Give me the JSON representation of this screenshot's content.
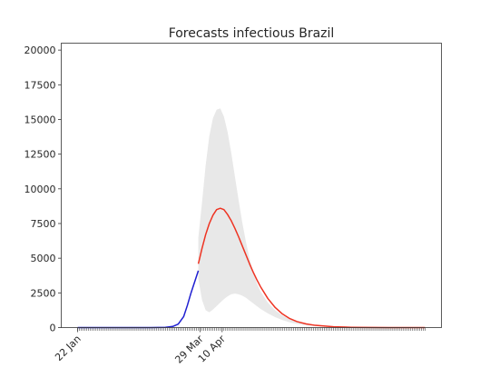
{
  "chart_data": {
    "type": "line",
    "title": "Forecasts infectious Brazil",
    "xlabel": "",
    "ylabel": "",
    "x_start": "22 Jan",
    "ylim": [
      0,
      20500
    ],
    "yticks": [
      0,
      2500,
      5000,
      7500,
      10000,
      12500,
      15000,
      17500,
      20000
    ],
    "ytick_labels": [
      "0",
      "2500",
      "5000",
      "7500",
      "10000",
      "12500",
      "15000",
      "17500",
      "20000"
    ],
    "xticks": [
      {
        "label": "22 Jan",
        "day": 0
      },
      {
        "label": "29 Mar",
        "day": 67
      },
      {
        "label": "10 Apr",
        "day": 79
      }
    ],
    "minor_tick_days_range": [
      0,
      190
    ],
    "grid": false,
    "legend": "none",
    "series": [
      {
        "role": "observed",
        "color": "#1f1fd1",
        "x_days": [
          0,
          10,
          20,
          30,
          40,
          48,
          52,
          55,
          58,
          60,
          62,
          64,
          66
        ],
        "y": [
          0,
          0,
          0,
          0,
          0,
          20,
          80,
          250,
          800,
          1600,
          2500,
          3300,
          4100
        ]
      },
      {
        "role": "forecast",
        "color": "#ee3322",
        "x_days": [
          66,
          68,
          70,
          72,
          74,
          76,
          78,
          80,
          82,
          84,
          86,
          88,
          90,
          92,
          94,
          96,
          98,
          100,
          104,
          108,
          112,
          116,
          120,
          125,
          130,
          140,
          150,
          160,
          170,
          180,
          190
        ],
        "y": [
          4600,
          5700,
          6700,
          7500,
          8100,
          8500,
          8600,
          8500,
          8150,
          7700,
          7150,
          6550,
          5900,
          5250,
          4600,
          4000,
          3450,
          2950,
          2100,
          1450,
          980,
          650,
          430,
          260,
          160,
          60,
          20,
          8,
          3,
          1,
          0
        ]
      }
    ],
    "uncertainty_band": {
      "color": "#e8e8e8",
      "x_days": [
        66,
        68,
        70,
        72,
        74,
        76,
        78,
        80,
        82,
        84,
        86,
        88,
        90,
        92,
        94,
        96,
        98,
        100,
        104,
        108,
        112,
        116,
        120,
        125,
        130,
        140,
        150,
        160,
        170,
        180,
        190
      ],
      "upper": [
        6500,
        9000,
        11700,
        13800,
        15100,
        15700,
        15800,
        15200,
        14100,
        12600,
        10900,
        9200,
        7600,
        6200,
        5000,
        4000,
        3200,
        2600,
        1800,
        1250,
        870,
        600,
        400,
        240,
        150,
        55,
        20,
        8,
        3,
        1,
        0
      ],
      "lower": [
        3500,
        2000,
        1250,
        1100,
        1300,
        1550,
        1800,
        2050,
        2250,
        2400,
        2450,
        2400,
        2300,
        2150,
        1950,
        1750,
        1550,
        1350,
        1020,
        750,
        540,
        380,
        260,
        160,
        100,
        40,
        15,
        6,
        2,
        1,
        0
      ]
    }
  }
}
